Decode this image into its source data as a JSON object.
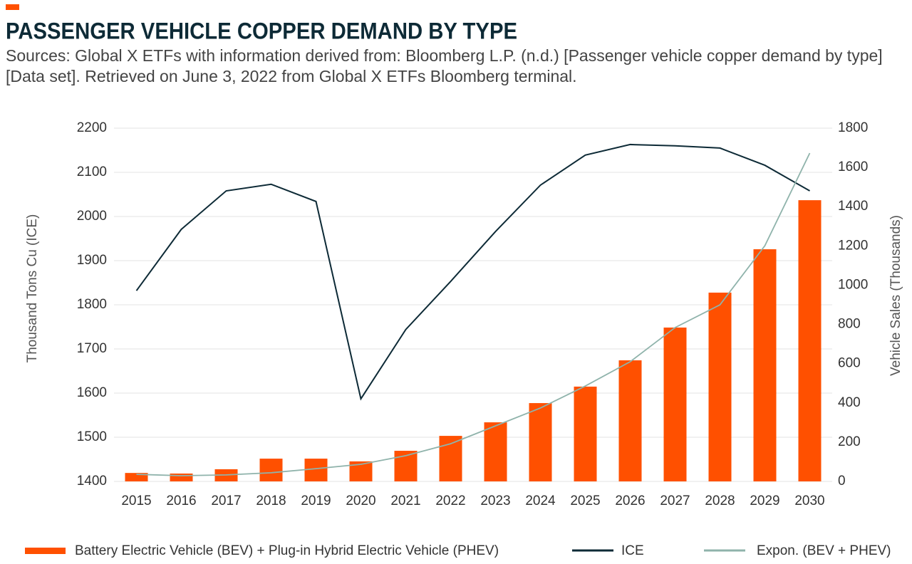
{
  "chart_data": {
    "type": "combo",
    "title": "PASSENGER VEHICLE COPPER DEMAND BY TYPE",
    "subtitle": "Sources: Global X ETFs with information derived from: Bloomberg L.P. (n.d.) [Passenger vehicle copper demand by type] [Data set]. Retrieved on June 3, 2022 from Global X ETFs Bloomberg terminal.",
    "y_label": "Thousand Tons Cu (ICE)",
    "y2_label": "Vehicle Sales (Thousands)",
    "categories": [
      "2015",
      "2016",
      "2017",
      "2018",
      "2019",
      "2020",
      "2021",
      "2022",
      "2023",
      "2024",
      "2025",
      "2026",
      "2027",
      "2028",
      "2029",
      "2030"
    ],
    "ylim": [
      1400,
      2200
    ],
    "yticks": [
      1400,
      1500,
      1600,
      1700,
      1800,
      1900,
      2000,
      2100,
      2200
    ],
    "y2lim": [
      0,
      1800
    ],
    "y2ticks": [
      0,
      200,
      400,
      600,
      800,
      1000,
      1200,
      1400,
      1600,
      1800
    ],
    "grid": true,
    "legend": "bottom",
    "series": [
      {
        "name": "Battery Electric Vehicle (BEV) + Plug-in Hybrid Electric Vehicle (PHEV)",
        "type": "bar",
        "axis": "y2",
        "color": "#ff5000",
        "values": [
          43,
          40,
          62,
          116,
          116,
          102,
          156,
          232,
          301,
          399,
          483,
          617,
          784,
          962,
          1183,
          1433
        ]
      },
      {
        "name": "ICE",
        "type": "line",
        "axis": "y",
        "color": "#0d2a36",
        "values": [
          1832,
          1971,
          2058,
          2073,
          2034,
          1587,
          1744,
          1853,
          1966,
          2071,
          2139,
          2163,
          2160,
          2155,
          2116,
          2058
        ]
      },
      {
        "name": "Expon. (BEV + PHEV)",
        "type": "curve",
        "axis": "y2",
        "color": "#8fb3ab",
        "values": [
          36,
          29,
          33,
          44,
          65,
          87,
          131,
          192,
          283,
          374,
          486,
          610,
          784,
          900,
          1201,
          1673
        ]
      }
    ]
  }
}
